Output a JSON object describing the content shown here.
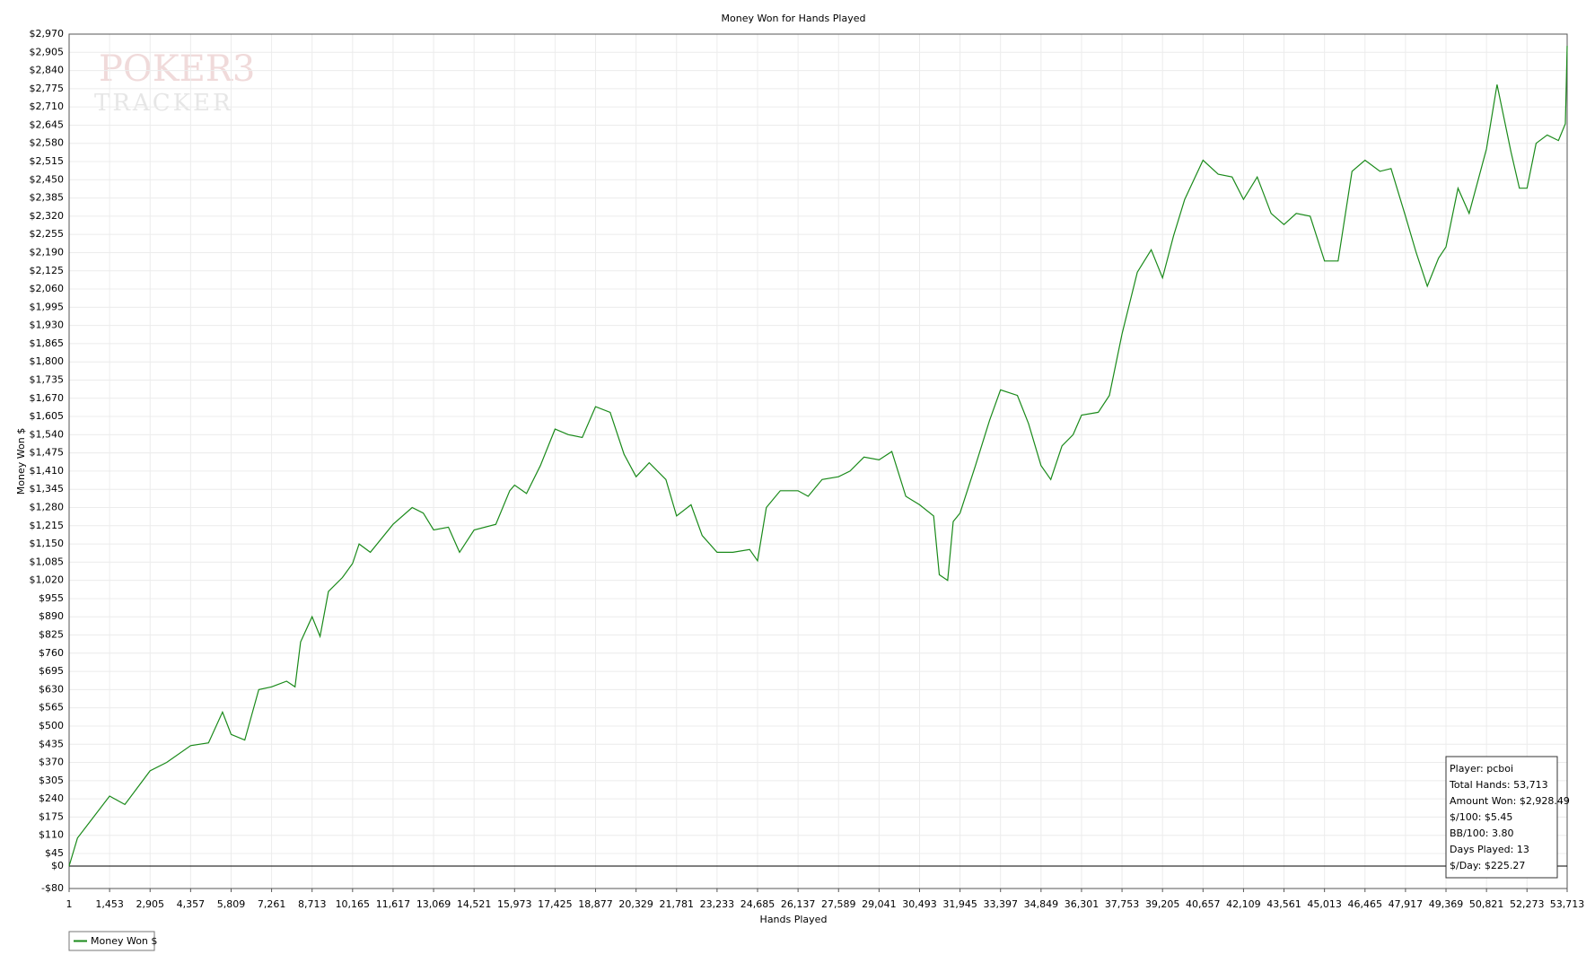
{
  "chart_data": {
    "type": "line",
    "title": "Money Won for Hands Played",
    "x_label": "Hands Played",
    "y_label": "Money Won $",
    "watermark": [
      "POKER3",
      "TRACKER"
    ],
    "stats": [
      "Player: pcboi",
      "Total Hands: 53,713",
      "Amount Won: $2,928.49",
      "$/100: $5.45",
      "BB/100: 3.80",
      "Days Played: 13",
      "$/Day: $225.27"
    ],
    "grid": true,
    "legend": "bottom-left",
    "xlim": [
      1,
      53713
    ],
    "ylim": [
      -80,
      2970
    ],
    "xticks": [
      1,
      {
        "value": 1453,
        "label": "1,453"
      },
      {
        "value": 2905,
        "label": "2,905"
      },
      {
        "value": 4357,
        "label": "4,357"
      },
      {
        "value": 5809,
        "label": "5,809"
      },
      {
        "value": 7261,
        "label": "7,261"
      },
      {
        "value": 8713,
        "label": "8,713"
      },
      {
        "value": 10165,
        "label": "10,165"
      },
      {
        "value": 11617,
        "label": "11,617"
      },
      {
        "value": 13069,
        "label": "13,069"
      },
      {
        "value": 14521,
        "label": "14,521"
      },
      {
        "value": 15973,
        "label": "15,973"
      },
      {
        "value": 17425,
        "label": "17,425"
      },
      {
        "value": 18877,
        "label": "18,877"
      },
      {
        "value": 20329,
        "label": "20,329"
      },
      {
        "value": 21781,
        "label": "21,781"
      },
      {
        "value": 23233,
        "label": "23,233"
      },
      {
        "value": 24685,
        "label": "24,685"
      },
      {
        "value": 26137,
        "label": "26,137"
      },
      {
        "value": 27589,
        "label": "27,589"
      },
      {
        "value": 29041,
        "label": "29,041"
      },
      {
        "value": 30493,
        "label": "30,493"
      },
      {
        "value": 31945,
        "label": "31,945"
      },
      {
        "value": 33397,
        "label": "33,397"
      },
      {
        "value": 34849,
        "label": "34,849"
      },
      {
        "value": 36301,
        "label": "36,301"
      },
      {
        "value": 37753,
        "label": "37,753"
      },
      {
        "value": 39205,
        "label": "39,205"
      },
      {
        "value": 40657,
        "label": "40,657"
      },
      {
        "value": 42109,
        "label": "42,109"
      },
      {
        "value": 43561,
        "label": "43,561"
      },
      {
        "value": 45013,
        "label": "45,013"
      },
      {
        "value": 46465,
        "label": "46,465"
      },
      {
        "value": 47917,
        "label": "47,917"
      },
      {
        "value": 49369,
        "label": "49,369"
      },
      {
        "value": 50821,
        "label": "50,821"
      },
      {
        "value": 52273,
        "label": "52,273"
      },
      {
        "value": 53713,
        "label": "53,713"
      }
    ],
    "yticks": [
      {
        "value": -80,
        "label": "-$80"
      },
      {
        "value": 0,
        "label": "$0"
      },
      {
        "value": 45,
        "label": "$45"
      },
      {
        "value": 110,
        "label": "$110"
      },
      {
        "value": 175,
        "label": "$175"
      },
      {
        "value": 240,
        "label": "$240"
      },
      {
        "value": 305,
        "label": "$305"
      },
      {
        "value": 370,
        "label": "$370"
      },
      {
        "value": 435,
        "label": "$435"
      },
      {
        "value": 500,
        "label": "$500"
      },
      {
        "value": 565,
        "label": "$565"
      },
      {
        "value": 630,
        "label": "$630"
      },
      {
        "value": 695,
        "label": "$695"
      },
      {
        "value": 760,
        "label": "$760"
      },
      {
        "value": 825,
        "label": "$825"
      },
      {
        "value": 890,
        "label": "$890"
      },
      {
        "value": 955,
        "label": "$955"
      },
      {
        "value": 1020,
        "label": "$1,020"
      },
      {
        "value": 1085,
        "label": "$1,085"
      },
      {
        "value": 1150,
        "label": "$1,150"
      },
      {
        "value": 1215,
        "label": "$1,215"
      },
      {
        "value": 1280,
        "label": "$1,280"
      },
      {
        "value": 1345,
        "label": "$1,345"
      },
      {
        "value": 1410,
        "label": "$1,410"
      },
      {
        "value": 1475,
        "label": "$1,475"
      },
      {
        "value": 1540,
        "label": "$1,540"
      },
      {
        "value": 1605,
        "label": "$1,605"
      },
      {
        "value": 1670,
        "label": "$1,670"
      },
      {
        "value": 1735,
        "label": "$1,735"
      },
      {
        "value": 1800,
        "label": "$1,800"
      },
      {
        "value": 1865,
        "label": "$1,865"
      },
      {
        "value": 1930,
        "label": "$1,930"
      },
      {
        "value": 1995,
        "label": "$1,995"
      },
      {
        "value": 2060,
        "label": "$2,060"
      },
      {
        "value": 2125,
        "label": "$2,125"
      },
      {
        "value": 2190,
        "label": "$2,190"
      },
      {
        "value": 2255,
        "label": "$2,255"
      },
      {
        "value": 2320,
        "label": "$2,320"
      },
      {
        "value": 2385,
        "label": "$2,385"
      },
      {
        "value": 2450,
        "label": "$2,450"
      },
      {
        "value": 2515,
        "label": "$2,515"
      },
      {
        "value": 2580,
        "label": "$2,580"
      },
      {
        "value": 2645,
        "label": "$2,645"
      },
      {
        "value": 2710,
        "label": "$2,710"
      },
      {
        "value": 2775,
        "label": "$2,775"
      },
      {
        "value": 2840,
        "label": "$2,840"
      },
      {
        "value": 2905,
        "label": "$2,905"
      },
      {
        "value": 2970,
        "label": "$2,970"
      }
    ],
    "x": [
      1,
      300,
      1453,
      2000,
      2905,
      3500,
      4357,
      5000,
      5500,
      5809,
      6300,
      6800,
      7261,
      7800,
      8100,
      8300,
      8713,
      9000,
      9300,
      9800,
      10165,
      10400,
      10800,
      11617,
      12300,
      12700,
      13069,
      13600,
      14000,
      14521,
      15300,
      15800,
      15973,
      16400,
      16900,
      17425,
      17900,
      18400,
      18877,
      19400,
      19900,
      20329,
      20800,
      21400,
      21781,
      22300,
      22700,
      23233,
      23800,
      24400,
      24685,
      25000,
      25500,
      26137,
      26500,
      27000,
      27589,
      28000,
      28500,
      29041,
      29500,
      30000,
      30493,
      31000,
      31200,
      31500,
      31700,
      31945,
      32500,
      33000,
      33397,
      34000,
      34400,
      34849,
      35200,
      35600,
      36000,
      36301,
      36900,
      37300,
      37753,
      38300,
      38800,
      39205,
      39600,
      40000,
      40657,
      41200,
      41700,
      42109,
      42600,
      43100,
      43561,
      44000,
      44500,
      45013,
      45500,
      46000,
      46465,
      47000,
      47400,
      47917,
      48300,
      48700,
      49100,
      49369,
      49800,
      50200,
      50821,
      51200,
      51700,
      52000,
      52273,
      52600,
      53000,
      53400,
      53650,
      53713
    ],
    "series": [
      {
        "name": "Money Won $",
        "color": "#1a8a1a",
        "values": [
          0,
          100,
          250,
          220,
          340,
          370,
          430,
          440,
          550,
          470,
          450,
          630,
          640,
          660,
          640,
          800,
          890,
          820,
          980,
          1030,
          1080,
          1150,
          1120,
          1220,
          1280,
          1260,
          1200,
          1210,
          1120,
          1200,
          1220,
          1340,
          1360,
          1330,
          1430,
          1560,
          1540,
          1530,
          1640,
          1620,
          1470,
          1390,
          1440,
          1380,
          1250,
          1290,
          1180,
          1120,
          1120,
          1130,
          1090,
          1280,
          1340,
          1340,
          1320,
          1380,
          1390,
          1410,
          1460,
          1450,
          1480,
          1320,
          1290,
          1250,
          1040,
          1020,
          1230,
          1260,
          1430,
          1590,
          1700,
          1680,
          1580,
          1430,
          1380,
          1500,
          1540,
          1610,
          1620,
          1680,
          1900,
          2120,
          2200,
          2100,
          2250,
          2380,
          2520,
          2470,
          2460,
          2380,
          2460,
          2330,
          2290,
          2330,
          2320,
          2160,
          2160,
          2480,
          2520,
          2480,
          2490,
          2320,
          2190,
          2070,
          2170,
          2210,
          2420,
          2330,
          2560,
          2790,
          2550,
          2420,
          2420,
          2580,
          2610,
          2590,
          2650,
          2928
        ]
      }
    ]
  }
}
